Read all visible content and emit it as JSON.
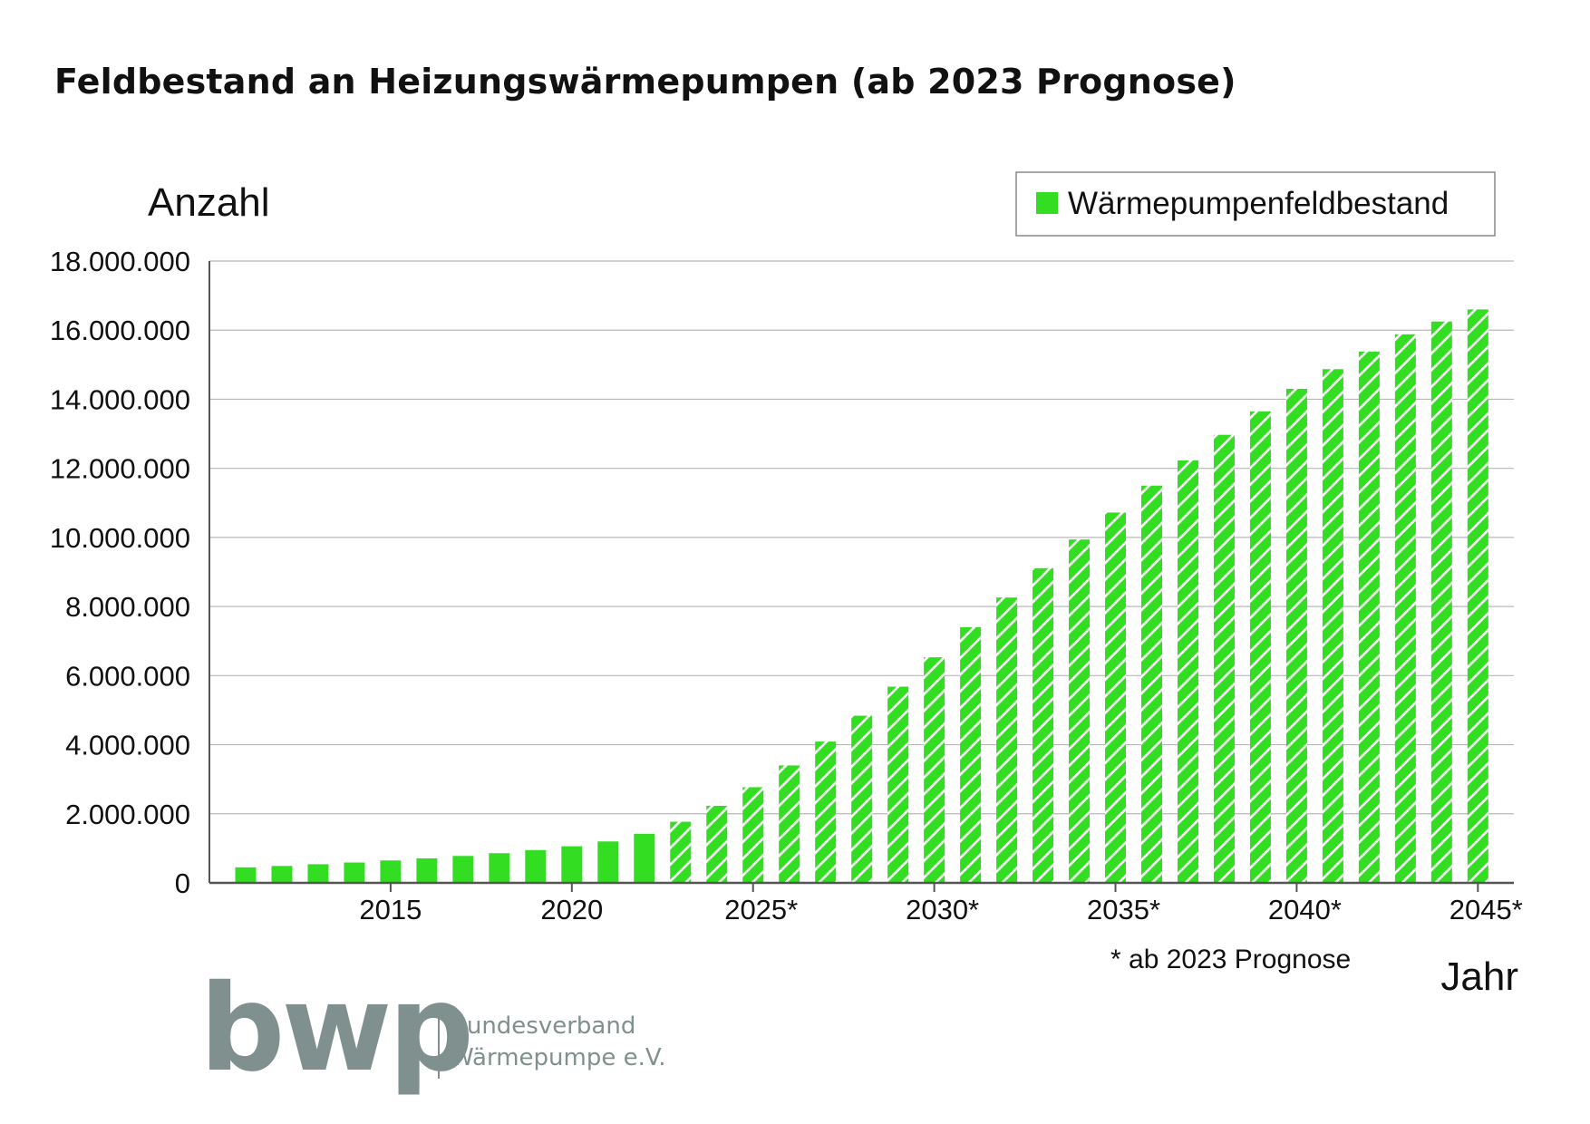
{
  "chart_data": {
    "type": "bar",
    "title": "Feldbestand an Heizungswärmepumpen (ab 2023 Prognose)",
    "ylabel": "Anzahl",
    "xlabel": "Jahr",
    "ylim": [
      0,
      18000000
    ],
    "yticks": [
      0,
      2000000,
      4000000,
      6000000,
      8000000,
      10000000,
      12000000,
      14000000,
      16000000,
      18000000
    ],
    "ytick_labels": [
      "0",
      "2.000.000",
      "4.000.000",
      "6.000.000",
      "8.000.000",
      "10.000.000",
      "12.000.000",
      "14.000.000",
      "16.000.000",
      "18.000.000"
    ],
    "xtick_labels": [
      {
        "year": 2015,
        "label": "2015"
      },
      {
        "year": 2020,
        "label": "2020"
      },
      {
        "year": 2025,
        "label": "2025*"
      },
      {
        "year": 2030,
        "label": "2030*"
      },
      {
        "year": 2035,
        "label": "2035*"
      },
      {
        "year": 2040,
        "label": "2040*"
      },
      {
        "year": 2045,
        "label": "2045*"
      }
    ],
    "grid": true,
    "legend_position": "top-right",
    "forecast_from": 2023,
    "series": [
      {
        "name": "Wärmepumpenfeldbestand",
        "color": "#33dd22",
        "years": [
          2011,
          2012,
          2013,
          2014,
          2015,
          2016,
          2017,
          2018,
          2019,
          2020,
          2021,
          2022,
          2023,
          2024,
          2025,
          2026,
          2027,
          2028,
          2029,
          2030,
          2031,
          2032,
          2033,
          2034,
          2035,
          2036,
          2037,
          2038,
          2039,
          2040,
          2041,
          2042,
          2043,
          2044,
          2045
        ],
        "values": [
          450000,
          490000,
          540000,
          590000,
          650000,
          710000,
          780000,
          860000,
          950000,
          1060000,
          1200000,
          1420000,
          1770000,
          2230000,
          2770000,
          3400000,
          4090000,
          4840000,
          5680000,
          6530000,
          7400000,
          8260000,
          9110000,
          9940000,
          10720000,
          11500000,
          12230000,
          12970000,
          13650000,
          14300000,
          14870000,
          15380000,
          15880000,
          16250000,
          16600000
        ]
      }
    ],
    "footnote": "* ab 2023 Prognose"
  },
  "logo": {
    "mark": "bwp",
    "line1": "Bundesverband",
    "line2": "Wärmepumpe e.V.",
    "color": "#7f908f"
  }
}
